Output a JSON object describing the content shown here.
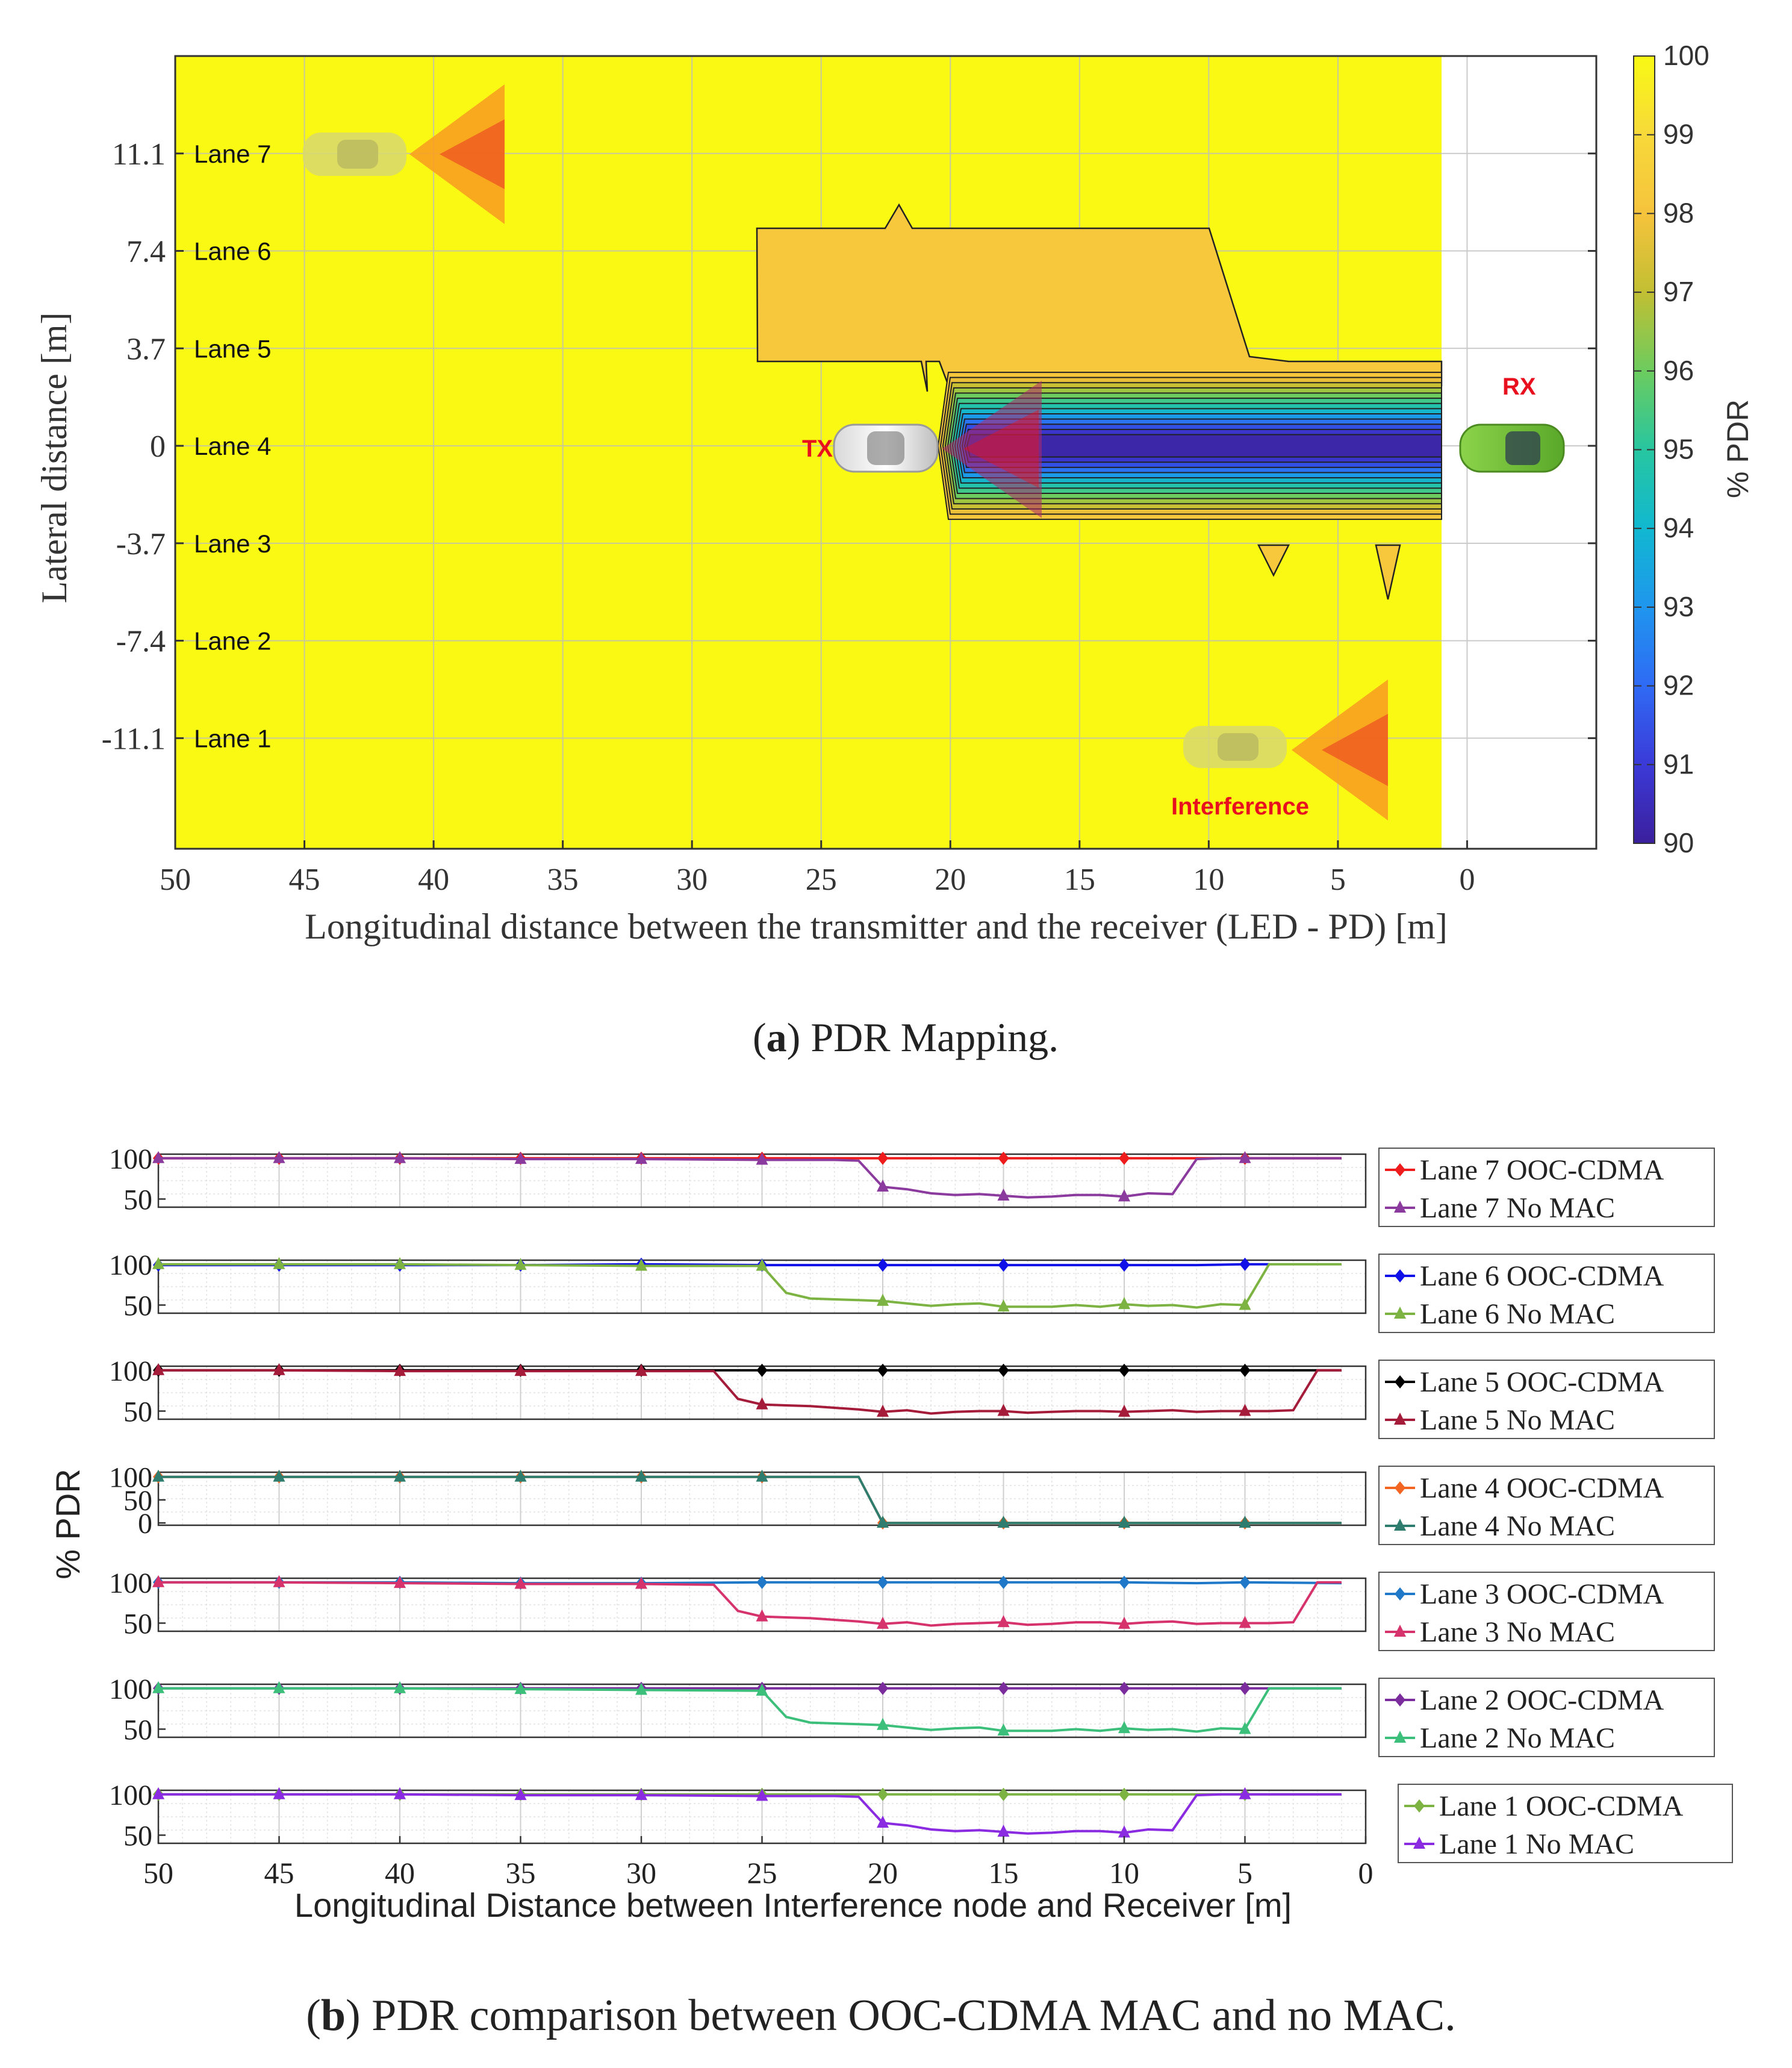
{
  "figure_a": {
    "caption_letter": "a",
    "caption_text": "PDR Mapping.",
    "xlabel": "Longitudinal distance between the transmitter and the receiver (LED - PD) [m]",
    "ylabel": "Lateral distance [m]",
    "colorbar_label": "% PDR",
    "labels": {
      "tx": "TX",
      "rx": "RX",
      "interference": "Interference"
    },
    "colors": {
      "field": "#f9f913",
      "plateau": "#f7c83c",
      "tx": "#e8101e",
      "interference": "#e81818"
    }
  },
  "figure_b": {
    "caption_letter": "b",
    "caption_text": "PDR comparison between OOC-CDMA MAC and no MAC.",
    "xlabel": "Longitudinal Distance between Interference node and Receiver [m]",
    "ylabel": "% PDR"
  },
  "chart_data": [
    {
      "type": "heatmap",
      "title": "PDR Mapping",
      "xlabel": "Longitudinal distance between the transmitter and the receiver (LED - PD) [m]",
      "ylabel": "Lateral distance [m]",
      "xlim": [
        50,
        -5
      ],
      "ylim": [
        -15.3,
        14.8
      ],
      "x_ticks": [
        "50",
        "45",
        "40",
        "35",
        "30",
        "25",
        "20",
        "15",
        "10",
        "5",
        "0"
      ],
      "y_ticks": [
        {
          "value": 11.1,
          "label": "11.1",
          "lane": "Lane 7"
        },
        {
          "value": 7.4,
          "label": "7.4",
          "lane": "Lane 6"
        },
        {
          "value": 3.7,
          "label": "3.7",
          "lane": "Lane 5"
        },
        {
          "value": 0,
          "label": "0",
          "lane": "Lane 4"
        },
        {
          "value": -3.7,
          "label": "-3.7",
          "lane": "Lane 3"
        },
        {
          "value": -7.4,
          "label": "-7.4",
          "lane": "Lane 2"
        },
        {
          "value": -11.1,
          "label": "-11.1",
          "lane": "Lane 1"
        }
      ],
      "colorbar": {
        "label": "% PDR",
        "min": 90,
        "max": 100,
        "ticks": [
          "100",
          "99",
          "98",
          "97",
          "96",
          "95",
          "94",
          "93",
          "92",
          "91",
          "90"
        ]
      },
      "regions": [
        {
          "name": "background",
          "pdr": 100,
          "x_range": [
            50,
            1
          ]
        },
        {
          "name": "upper plateau (lanes 5-6)",
          "pdr": 98.5,
          "x_range": [
            27.5,
            8
          ]
        },
        {
          "name": "shadow of TX (lanes 3-5)",
          "pdr_range": [
            90,
            98.5
          ],
          "x_range": [
            20.5,
            1
          ],
          "centerline_pdr": 90
        }
      ],
      "markers": [
        {
          "name": "TX",
          "x": 24,
          "y": 0
        },
        {
          "name": "RX",
          "x": -2,
          "y": 0
        },
        {
          "name": "Interference",
          "x": 7.5,
          "y": -11.1
        }
      ]
    },
    {
      "type": "line",
      "title": "PDR comparison between OOC-CDMA MAC and no MAC",
      "xlabel": "Longitudinal Distance between Interference node and Receiver [m]",
      "ylabel": "% PDR",
      "xlim": [
        50,
        0
      ],
      "x_ticks": [
        "50",
        "45",
        "40",
        "35",
        "30",
        "25",
        "20",
        "15",
        "10",
        "5",
        "0"
      ],
      "panels": [
        {
          "lane": "Lane 7",
          "y_ticks": [
            "100",
            "50"
          ],
          "ylim": [
            40,
            105
          ],
          "series": [
            {
              "name": "Lane 7 OOC-CDMA",
              "color": "#ee1c1c",
              "marker": "diamond",
              "x": [
                50,
                45,
                40,
                35,
                30,
                25,
                20,
                15,
                10,
                5,
                1
              ],
              "values": [
                100,
                100,
                100,
                100,
                100,
                100,
                100,
                100,
                100,
                100,
                100
              ]
            },
            {
              "name": "Lane 7 No MAC",
              "color": "#8b3a9e",
              "marker": "triangle",
              "x": [
                50,
                45,
                40,
                35,
                30,
                25,
                22,
                21,
                20,
                19,
                18,
                17,
                16,
                15,
                14,
                13,
                12,
                11,
                10,
                9,
                8,
                7,
                6,
                5,
                4,
                3,
                2,
                1
              ],
              "values": [
                100,
                100,
                100,
                99,
                99,
                98,
                98,
                97,
                65,
                62,
                57,
                55,
                56,
                54,
                52,
                53,
                55,
                55,
                53,
                57,
                56,
                99,
                100,
                100,
                100,
                100,
                100,
                100
              ]
            }
          ]
        },
        {
          "lane": "Lane 6",
          "y_ticks": [
            "100",
            "50"
          ],
          "ylim": [
            40,
            105
          ],
          "series": [
            {
              "name": "Lane 6 OOC-CDMA",
              "color": "#1010e8",
              "marker": "diamond",
              "x": [
                50,
                45,
                40,
                35,
                30,
                25,
                20,
                15,
                10,
                7,
                5,
                4
              ],
              "values": [
                99,
                99,
                99,
                99,
                100,
                99,
                99,
                99,
                99,
                99,
                100,
                100
              ]
            },
            {
              "name": "Lane 6 No MAC",
              "color": "#7cb342",
              "marker": "triangle",
              "x": [
                50,
                45,
                40,
                35,
                30,
                25,
                24,
                23,
                22,
                21,
                20,
                19,
                18,
                17,
                16,
                15,
                14,
                13,
                12,
                11,
                10,
                9,
                8,
                7,
                6,
                5,
                4,
                3,
                2,
                1
              ],
              "values": [
                100,
                100,
                100,
                99,
                98,
                98,
                65,
                58,
                57,
                56,
                55,
                52,
                49,
                51,
                52,
                48,
                48,
                48,
                50,
                48,
                51,
                49,
                50,
                47,
                51,
                50,
                100,
                100,
                100,
                100
              ]
            }
          ]
        },
        {
          "lane": "Lane 5",
          "y_ticks": [
            "100",
            "50"
          ],
          "ylim": [
            40,
            105
          ],
          "series": [
            {
              "name": "Lane 5 OOC-CDMA",
              "color": "#000000",
              "marker": "diamond",
              "x": [
                50,
                45,
                40,
                35,
                30,
                25,
                20,
                15,
                10,
                7,
                5,
                1
              ],
              "values": [
                100,
                100,
                100,
                100,
                100,
                100,
                100,
                100,
                100,
                100,
                100,
                100
              ]
            },
            {
              "name": "Lane 5 No MAC",
              "color": "#a41c3a",
              "marker": "triangle",
              "x": [
                50,
                45,
                40,
                35,
                30,
                27,
                26,
                25,
                24,
                23,
                22,
                21,
                20,
                19,
                18,
                17,
                16,
                15,
                14,
                13,
                12,
                11,
                10,
                9,
                8,
                7,
                6,
                5,
                4,
                3,
                2,
                1
              ],
              "values": [
                100,
                100,
                99,
                99,
                99,
                99,
                65,
                58,
                57,
                56,
                54,
                52,
                49,
                51,
                47,
                49,
                50,
                50,
                48,
                49,
                50,
                50,
                49,
                50,
                51,
                49,
                50,
                50,
                50,
                51,
                100,
                100
              ]
            }
          ]
        },
        {
          "lane": "Lane 4",
          "y_ticks": [
            "100",
            "50",
            "0"
          ],
          "ylim": [
            -5,
            110
          ],
          "series": [
            {
              "name": "Lane 4 OOC-CDMA",
              "color": "#f26522",
              "marker": "diamond",
              "x": [
                50,
                45,
                40,
                35,
                30,
                25,
                21,
                20,
                15,
                10,
                5,
                1
              ],
              "values": [
                100,
                100,
                100,
                100,
                100,
                100,
                100,
                0,
                0,
                0,
                0,
                0
              ]
            },
            {
              "name": "Lane 4 No MAC",
              "color": "#2e7d6e",
              "marker": "triangle",
              "x": [
                50,
                45,
                40,
                35,
                30,
                25,
                21,
                20,
                15,
                10,
                5,
                1
              ],
              "values": [
                100,
                100,
                100,
                100,
                100,
                100,
                100,
                0,
                0,
                0,
                0,
                0
              ]
            }
          ]
        },
        {
          "lane": "Lane 3",
          "y_ticks": [
            "100",
            "50"
          ],
          "ylim": [
            40,
            105
          ],
          "series": [
            {
              "name": "Lane 3 OOC-CDMA",
              "color": "#1f78c8",
              "marker": "diamond",
              "x": [
                50,
                45,
                40,
                35,
                30,
                25,
                20,
                15,
                10,
                7,
                5,
                1
              ],
              "values": [
                100,
                100,
                100,
                99,
                99,
                100,
                100,
                100,
                100,
                99,
                100,
                99
              ]
            },
            {
              "name": "Lane 3 No MAC",
              "color": "#d6336c",
              "marker": "triangle",
              "x": [
                50,
                45,
                40,
                35,
                30,
                27,
                26,
                25,
                24,
                23,
                22,
                21,
                20,
                19,
                18,
                17,
                16,
                15,
                14,
                13,
                12,
                11,
                10,
                9,
                8,
                7,
                6,
                5,
                4,
                3,
                2,
                1
              ],
              "values": [
                100,
                100,
                99,
                98,
                98,
                97,
                65,
                58,
                57,
                56,
                54,
                52,
                49,
                51,
                47,
                49,
                50,
                51,
                48,
                49,
                51,
                51,
                49,
                51,
                52,
                49,
                50,
                50,
                50,
                51,
                100,
                100
              ]
            }
          ]
        },
        {
          "lane": "Lane 2",
          "y_ticks": [
            "100",
            "50"
          ],
          "ylim": [
            40,
            105
          ],
          "series": [
            {
              "name": "Lane 2 OOC-CDMA",
              "color": "#7b2d9e",
              "marker": "diamond",
              "x": [
                50,
                45,
                40,
                35,
                30,
                25,
                20,
                15,
                10,
                5,
                1
              ],
              "values": [
                100,
                100,
                100,
                100,
                100,
                100,
                100,
                100,
                100,
                100,
                100
              ]
            },
            {
              "name": "Lane 2 No MAC",
              "color": "#3cbf7a",
              "marker": "triangle",
              "x": [
                50,
                45,
                40,
                35,
                30,
                25,
                24,
                23,
                22,
                21,
                20,
                19,
                18,
                17,
                16,
                15,
                14,
                13,
                12,
                11,
                10,
                9,
                8,
                7,
                6,
                5,
                4,
                3,
                2,
                1
              ],
              "values": [
                100,
                100,
                100,
                99,
                98,
                97,
                65,
                58,
                57,
                56,
                55,
                52,
                49,
                51,
                52,
                48,
                48,
                48,
                50,
                48,
                51,
                49,
                50,
                47,
                51,
                50,
                100,
                100,
                100,
                100
              ]
            }
          ]
        },
        {
          "lane": "Lane 1",
          "y_ticks": [
            "100",
            "50"
          ],
          "ylim": [
            40,
            105
          ],
          "series": [
            {
              "name": "Lane 1 OOC-CDMA",
              "color": "#7cb342",
              "marker": "diamond",
              "x": [
                50,
                45,
                40,
                35,
                30,
                25,
                20,
                15,
                10,
                5,
                1
              ],
              "values": [
                100,
                100,
                100,
                100,
                100,
                100,
                100,
                100,
                100,
                100,
                100
              ]
            },
            {
              "name": "Lane 1 No MAC",
              "color": "#8a2be2",
              "marker": "triangle",
              "x": [
                50,
                45,
                40,
                35,
                30,
                25,
                22,
                21,
                20,
                19,
                18,
                17,
                16,
                15,
                14,
                13,
                12,
                11,
                10,
                9,
                8,
                7,
                6,
                5,
                4,
                3,
                2,
                1
              ],
              "values": [
                100,
                100,
                100,
                99,
                99,
                98,
                98,
                97,
                65,
                62,
                57,
                55,
                56,
                54,
                52,
                53,
                55,
                55,
                53,
                57,
                56,
                99,
                100,
                100,
                100,
                100,
                100,
                100
              ]
            }
          ]
        }
      ]
    }
  ]
}
